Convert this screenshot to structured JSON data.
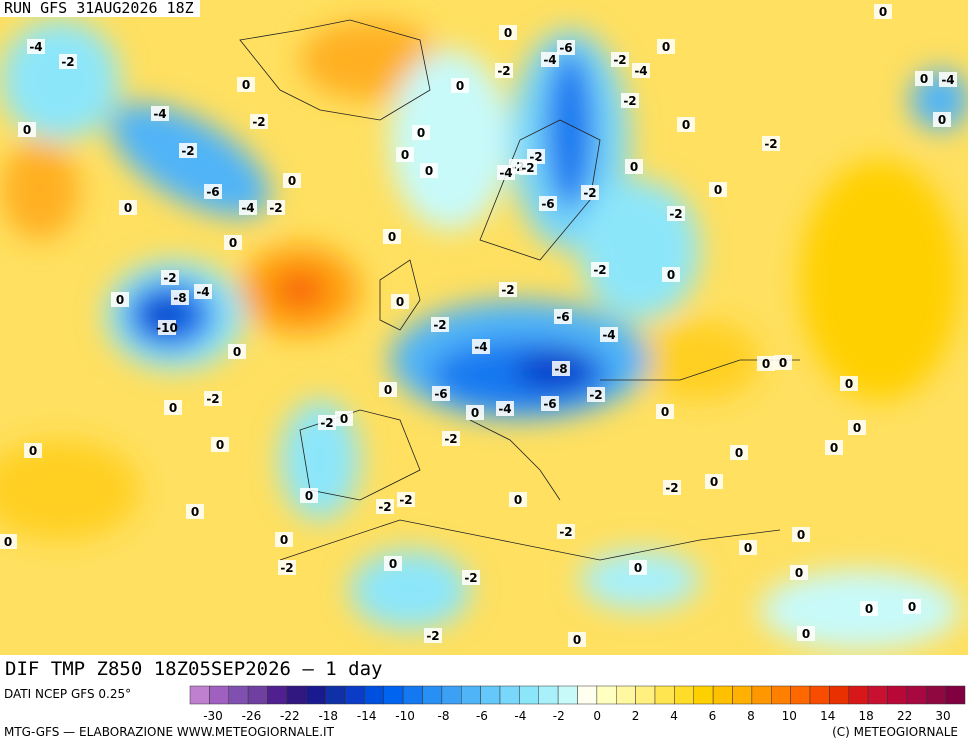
{
  "header": {
    "title": "RUN GFS 31AUG2026 18Z"
  },
  "map": {
    "contour_labels": [
      -4,
      -2,
      0,
      -4,
      -2,
      -6,
      -4,
      -2,
      0,
      0,
      0,
      -2,
      -8,
      -4,
      -10,
      0,
      0,
      0,
      -2,
      0,
      0,
      -2,
      0,
      0,
      0,
      0,
      0,
      0,
      -2,
      -6,
      -4,
      -2,
      -4,
      0,
      -2,
      0,
      -2,
      -2,
      -4,
      -2,
      0,
      -6,
      -2,
      -2,
      0,
      -2,
      0,
      -4,
      0,
      0,
      0,
      -2,
      0,
      -2,
      0,
      -2,
      -6,
      -4,
      -4,
      -8,
      -6,
      -4,
      -6,
      -2,
      0,
      0,
      -2,
      -2,
      0,
      0,
      0,
      0,
      0,
      0,
      0,
      0,
      0,
      -2,
      0,
      -2,
      -2,
      0,
      0,
      0,
      -2,
      0,
      0,
      -2,
      0,
      -2,
      0,
      0,
      0,
      -2,
      0,
      0,
      0,
      0,
      0
    ]
  },
  "footer": {
    "subtitle": "DIF TMP Z850 18Z05SEP2026 — 1 day",
    "source": "DATI NCEP GFS 0.25°",
    "credit": "MTG-GFS — ELABORAZIONE WWW.METEOGIORNALE.IT",
    "copyright": "(C) METEOGIORNALE"
  },
  "colorbar": {
    "labels": [
      -30,
      -26,
      -22,
      -18,
      -14,
      -10,
      -8,
      -6,
      -4,
      -2,
      0,
      2,
      4,
      6,
      8,
      10,
      14,
      18,
      22,
      30
    ],
    "colors": [
      "#c080d0",
      "#a060c0",
      "#8050b0",
      "#7040a0",
      "#502090",
      "#301880",
      "#1a1a90",
      "#1030a8",
      "#0a3cc8",
      "#0050e0",
      "#0064f0",
      "#1478f0",
      "#2890f5",
      "#3ca0f5",
      "#50b4f8",
      "#64c8fa",
      "#78d7fa",
      "#8ce6fa",
      "#a8f0fa",
      "#c8fafa",
      "#fffff0",
      "#ffffc0",
      "#fff8a0",
      "#fff080",
      "#ffe650",
      "#ffdc28",
      "#ffd000",
      "#ffc000",
      "#ffb000",
      "#ff9800",
      "#ff8000",
      "#ff6800",
      "#f84c00",
      "#e83000",
      "#d81818",
      "#c81030",
      "#b80838",
      "#a80840",
      "#900840",
      "#800040"
    ]
  }
}
